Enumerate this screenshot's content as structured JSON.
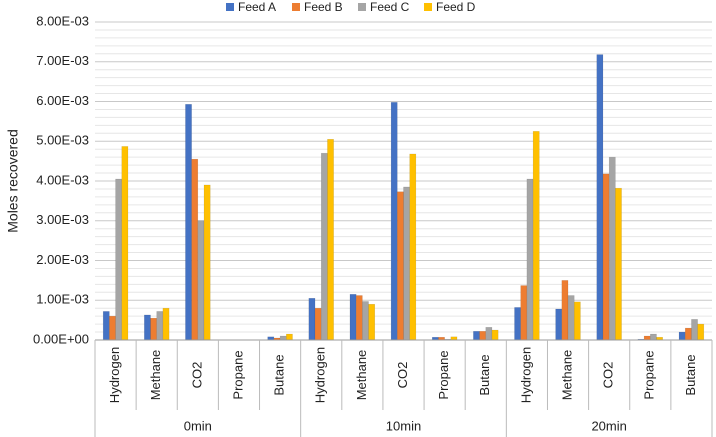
{
  "chart_data": {
    "type": "bar",
    "y_label": "Moles recovered",
    "groups": [
      "0min",
      "10min",
      "20min"
    ],
    "categories": [
      "Hydrogen",
      "Methane",
      "CO2",
      "Propane",
      "Butane",
      "Hydrogen",
      "Methane",
      "CO2",
      "Propane",
      "Butane",
      "Hydrogen",
      "Methane",
      "CO2",
      "Propane",
      "Butane"
    ],
    "series": [
      {
        "name": "Feed A",
        "color": "#4472c4",
        "values": [
          0.00072,
          0.00063,
          0.00593,
          0,
          8e-05,
          0.00105,
          0.00115,
          0.00598,
          7e-05,
          0.00022,
          0.00082,
          0.00078,
          0.00718,
          2e-05,
          0.0002
        ]
      },
      {
        "name": "Feed B",
        "color": "#ed7d31",
        "values": [
          0.0006,
          0.00055,
          0.00455,
          0,
          5e-05,
          0.0008,
          0.00112,
          0.00373,
          7e-05,
          0.00022,
          0.00137,
          0.0015,
          0.00418,
          0.0001,
          0.0003
        ]
      },
      {
        "name": "Feed C",
        "color": "#a5a5a5",
        "values": [
          0.00405,
          0.00072,
          0.003,
          0,
          0.0001,
          0.0047,
          0.00097,
          0.00385,
          2e-05,
          0.00032,
          0.00405,
          0.00112,
          0.0046,
          0.00015,
          0.00052
        ]
      },
      {
        "name": "Feed D",
        "color": "#ffc000",
        "values": [
          0.00487,
          0.0008,
          0.0039,
          0,
          0.00015,
          0.00505,
          0.0009,
          0.00468,
          8e-05,
          0.00025,
          0.00525,
          0.00096,
          0.00382,
          7e-05,
          0.0004
        ]
      }
    ],
    "ylim": [
      0,
      0.008
    ],
    "yticks": [
      {
        "value": 0,
        "label": "0.00E+00"
      },
      {
        "value": 0.001,
        "label": "1.00E-03"
      },
      {
        "value": 0.002,
        "label": "2.00E-03"
      },
      {
        "value": 0.003,
        "label": "3.00E-03"
      },
      {
        "value": 0.004,
        "label": "4.00E-03"
      },
      {
        "value": 0.005,
        "label": "5.00E-03"
      },
      {
        "value": 0.006,
        "label": "6.00E-03"
      },
      {
        "value": 0.007,
        "label": "7.00E-03"
      },
      {
        "value": 0.008,
        "label": "8.00E-03"
      }
    ],
    "grid": true,
    "legend": "top"
  }
}
